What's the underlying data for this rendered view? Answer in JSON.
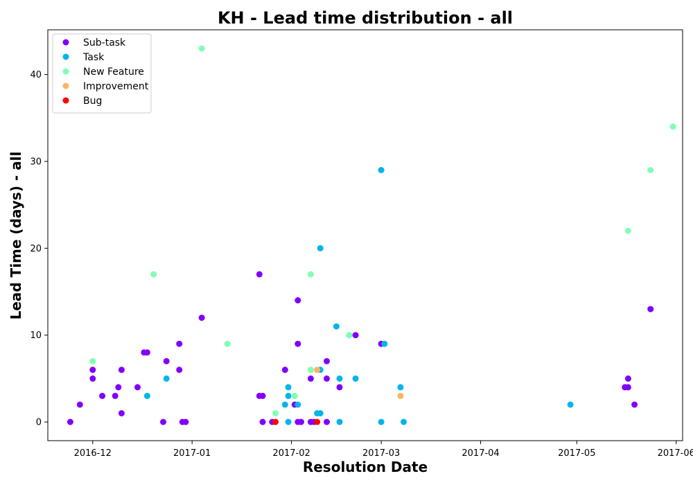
{
  "chart_data": {
    "type": "scatter",
    "title": "KH - Lead time distribution - all",
    "xlabel": "Resolution Date",
    "ylabel": "Lead Time (days) - all",
    "xlim": [
      "2016-11-17",
      "2017-06-03"
    ],
    "ylim": [
      -2.15,
      45.15
    ],
    "x_ticks": [
      "2016-12-01",
      "2017-01-01",
      "2017-02-01",
      "2017-03-01",
      "2017-04-01",
      "2017-05-01",
      "2017-06-01"
    ],
    "x_tick_labels": [
      "2016-12",
      "2017-01",
      "2017-02",
      "2017-03",
      "2017-04",
      "2017-05",
      "2017-06"
    ],
    "y_ticks": [
      0,
      10,
      20,
      30,
      40
    ],
    "y_tick_labels": [
      "0",
      "10",
      "20",
      "30",
      "40"
    ],
    "grid": false,
    "legend_position": "top-left",
    "series": [
      {
        "name": "Sub-task",
        "color": "#8000ff",
        "points": [
          [
            "2016-11-24",
            0
          ],
          [
            "2016-11-27",
            2
          ],
          [
            "2016-12-01",
            6
          ],
          [
            "2016-12-01",
            5
          ],
          [
            "2016-12-04",
            3
          ],
          [
            "2016-12-08",
            3
          ],
          [
            "2016-12-09",
            4
          ],
          [
            "2016-12-10",
            6
          ],
          [
            "2016-12-10",
            1
          ],
          [
            "2016-12-15",
            4
          ],
          [
            "2016-12-17",
            8
          ],
          [
            "2016-12-18",
            8
          ],
          [
            "2016-12-23",
            0
          ],
          [
            "2016-12-24",
            7
          ],
          [
            "2016-12-28",
            9
          ],
          [
            "2016-12-28",
            6
          ],
          [
            "2016-12-29",
            0
          ],
          [
            "2016-12-30",
            0
          ],
          [
            "2017-01-04",
            12
          ],
          [
            "2017-01-22",
            17
          ],
          [
            "2017-01-22",
            3
          ],
          [
            "2017-01-23",
            3
          ],
          [
            "2017-01-23",
            0
          ],
          [
            "2017-01-26",
            0
          ],
          [
            "2017-01-30",
            6
          ],
          [
            "2017-02-02",
            2
          ],
          [
            "2017-02-03",
            0
          ],
          [
            "2017-02-03",
            9
          ],
          [
            "2017-02-03",
            14
          ],
          [
            "2017-02-04",
            0
          ],
          [
            "2017-02-07",
            5
          ],
          [
            "2017-02-07",
            0
          ],
          [
            "2017-02-08",
            0
          ],
          [
            "2017-02-12",
            7
          ],
          [
            "2017-02-12",
            5
          ],
          [
            "2017-02-12",
            0
          ],
          [
            "2017-02-16",
            4
          ],
          [
            "2017-02-21",
            10
          ],
          [
            "2017-03-01",
            9
          ],
          [
            "2017-05-16",
            4
          ],
          [
            "2017-05-17",
            4
          ],
          [
            "2017-05-17",
            5
          ],
          [
            "2017-05-19",
            2
          ],
          [
            "2017-05-24",
            13
          ]
        ]
      },
      {
        "name": "Task",
        "color": "#00b5eb",
        "points": [
          [
            "2016-12-18",
            3
          ],
          [
            "2016-12-24",
            5
          ],
          [
            "2017-01-30",
            2
          ],
          [
            "2017-01-31",
            4
          ],
          [
            "2017-01-31",
            3
          ],
          [
            "2017-01-31",
            0
          ],
          [
            "2017-02-03",
            2
          ],
          [
            "2017-02-09",
            1
          ],
          [
            "2017-02-10",
            1
          ],
          [
            "2017-02-10",
            6
          ],
          [
            "2017-02-10",
            20
          ],
          [
            "2017-02-15",
            11
          ],
          [
            "2017-02-16",
            5
          ],
          [
            "2017-02-16",
            0
          ],
          [
            "2017-02-19",
            10
          ],
          [
            "2017-02-21",
            5
          ],
          [
            "2017-03-01",
            29
          ],
          [
            "2017-03-01",
            0
          ],
          [
            "2017-03-02",
            9
          ],
          [
            "2017-03-07",
            4
          ],
          [
            "2017-03-08",
            0
          ],
          [
            "2017-04-29",
            2
          ]
        ]
      },
      {
        "name": "New Feature",
        "color": "#80ffb4",
        "points": [
          [
            "2016-12-01",
            7
          ],
          [
            "2016-12-20",
            17
          ],
          [
            "2017-01-04",
            43
          ],
          [
            "2017-01-12",
            9
          ],
          [
            "2017-01-27",
            1
          ],
          [
            "2017-02-02",
            3
          ],
          [
            "2017-02-07",
            17
          ],
          [
            "2017-02-07",
            6
          ],
          [
            "2017-02-19",
            10
          ],
          [
            "2017-05-17",
            22
          ],
          [
            "2017-05-24",
            29
          ],
          [
            "2017-05-31",
            34
          ]
        ]
      },
      {
        "name": "Improvement",
        "color": "#ffb360",
        "points": [
          [
            "2017-02-09",
            6
          ],
          [
            "2017-03-07",
            3
          ]
        ]
      },
      {
        "name": "Bug",
        "color": "#ff0000",
        "points": [
          [
            "2017-01-27",
            0
          ],
          [
            "2017-02-09",
            0
          ]
        ]
      }
    ]
  }
}
